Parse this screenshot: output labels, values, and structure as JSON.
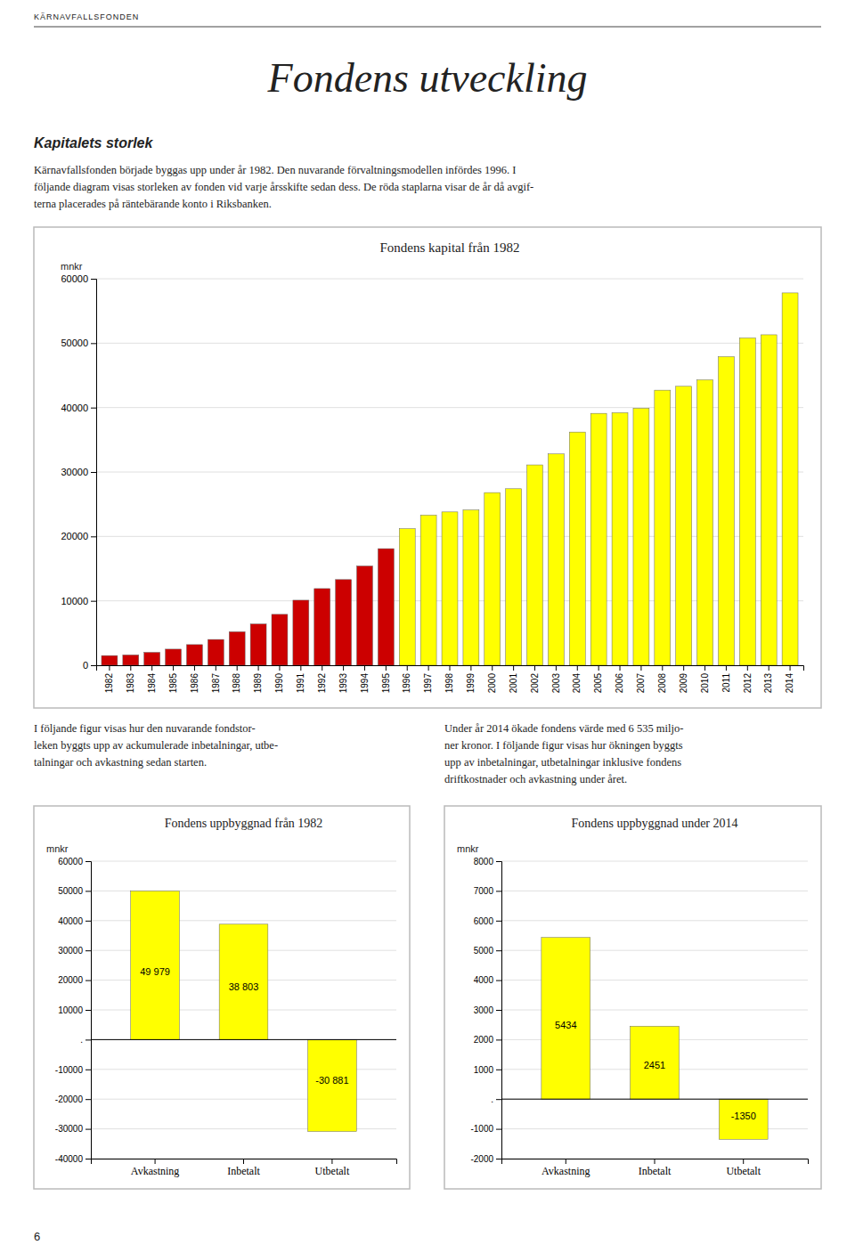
{
  "header_text": "KÄRNAVFALLSFONDEN",
  "page_title": "Fondens utveckling",
  "section_title": "Kapitalets storlek",
  "body_text": [
    "Kärnavfallsfonden började byggas upp under år 1982. Den nuvarande förvaltningsmodellen infördes 1996. I",
    "följande diagram visas storleken av fonden vid varje årsskifte sedan dess. De röda staplarna visar de år då avgif-",
    "terna placerades på räntebärande konto i Riksbanken."
  ],
  "body_text_left": [
    "I följande figur visas hur den nuvarande fondstor-",
    "leken byggts upp av ackumulerade inbetalningar, utbe-",
    "talningar och avkastning sedan starten."
  ],
  "body_text_right": [
    "Under år 2014 ökade fondens värde med 6 535 miljo-",
    "ner kronor. I följande figur visas hur ökningen byggts",
    "upp av inbetalningar, utbetalningar inklusive fondens",
    "driftkostnader och avkastning under året."
  ],
  "footer_text": "6",
  "chart_data": [
    {
      "type": "bar",
      "title": "Fondens kapital från 1982",
      "ylabel": "mnkr",
      "categories": [
        "1982",
        "1983",
        "1984",
        "1985",
        "1986",
        "1987",
        "1988",
        "1989",
        "1990",
        "1991",
        "1992",
        "1993",
        "1994",
        "1995",
        "1996",
        "1997",
        "1998",
        "1999",
        "2000",
        "2001",
        "2002",
        "2003",
        "2004",
        "2005",
        "2006",
        "2007",
        "2008",
        "2009",
        "2010",
        "2011",
        "2012",
        "2013",
        "2014"
      ],
      "values": [
        1500,
        1600,
        2000,
        2500,
        3200,
        4000,
        5200,
        6400,
        7900,
        10100,
        11900,
        13300,
        15400,
        18100,
        21200,
        23300,
        23800,
        24100,
        26800,
        27400,
        31100,
        32800,
        36200,
        39100,
        39200,
        39900,
        42700,
        43300,
        44300,
        47900,
        50800,
        51300,
        57800
      ],
      "colors": [
        "#CC0000",
        "#CC0000",
        "#CC0000",
        "#CC0000",
        "#CC0000",
        "#CC0000",
        "#CC0000",
        "#CC0000",
        "#CC0000",
        "#CC0000",
        "#CC0000",
        "#CC0000",
        "#CC0000",
        "#CC0000",
        "#FFFF00",
        "#FFFF00",
        "#FFFF00",
        "#FFFF00",
        "#FFFF00",
        "#FFFF00",
        "#FFFF00",
        "#FFFF00",
        "#FFFF00",
        "#FFFF00",
        "#FFFF00",
        "#FFFF00",
        "#FFFF00",
        "#FFFF00",
        "#FFFF00",
        "#FFFF00",
        "#FFFF00",
        "#FFFF00",
        "#FFFF00"
      ],
      "ylim": [
        0,
        60000
      ],
      "yticks": [
        0,
        10000,
        20000,
        30000,
        40000,
        50000,
        60000
      ],
      "grid": true
    },
    {
      "type": "bar",
      "title": "Fondens uppbyggnad från 1982",
      "ylabel": "mnkr",
      "categories": [
        "Avkastning",
        "Inbetalt",
        "Utbetalt"
      ],
      "values": [
        49979,
        38803,
        -30881
      ],
      "value_labels": [
        "49 979",
        "38 803",
        "-30 881"
      ],
      "color": "#FFFF00",
      "ylim": [
        -40000,
        60000
      ],
      "yticks": [
        -40000,
        -30000,
        -20000,
        -10000,
        {
          "value": 0,
          "label": "."
        },
        10000,
        20000,
        30000,
        40000,
        50000,
        60000
      ],
      "grid": true,
      "data_labels": true
    },
    {
      "type": "bar",
      "title": "Fondens uppbyggnad under 2014",
      "ylabel": "mnkr",
      "categories": [
        "Avkastning",
        "Inbetalt",
        "Utbetalt"
      ],
      "values": [
        5434,
        2451,
        -1350
      ],
      "color": "#FFFF00",
      "ylim": [
        -2000,
        8000
      ],
      "yticks": [
        -2000,
        -1000,
        {
          "value": 0,
          "label": "."
        },
        1000,
        2000,
        3000,
        4000,
        5000,
        6000,
        7000,
        8000
      ],
      "grid": true,
      "data_labels": true
    }
  ]
}
